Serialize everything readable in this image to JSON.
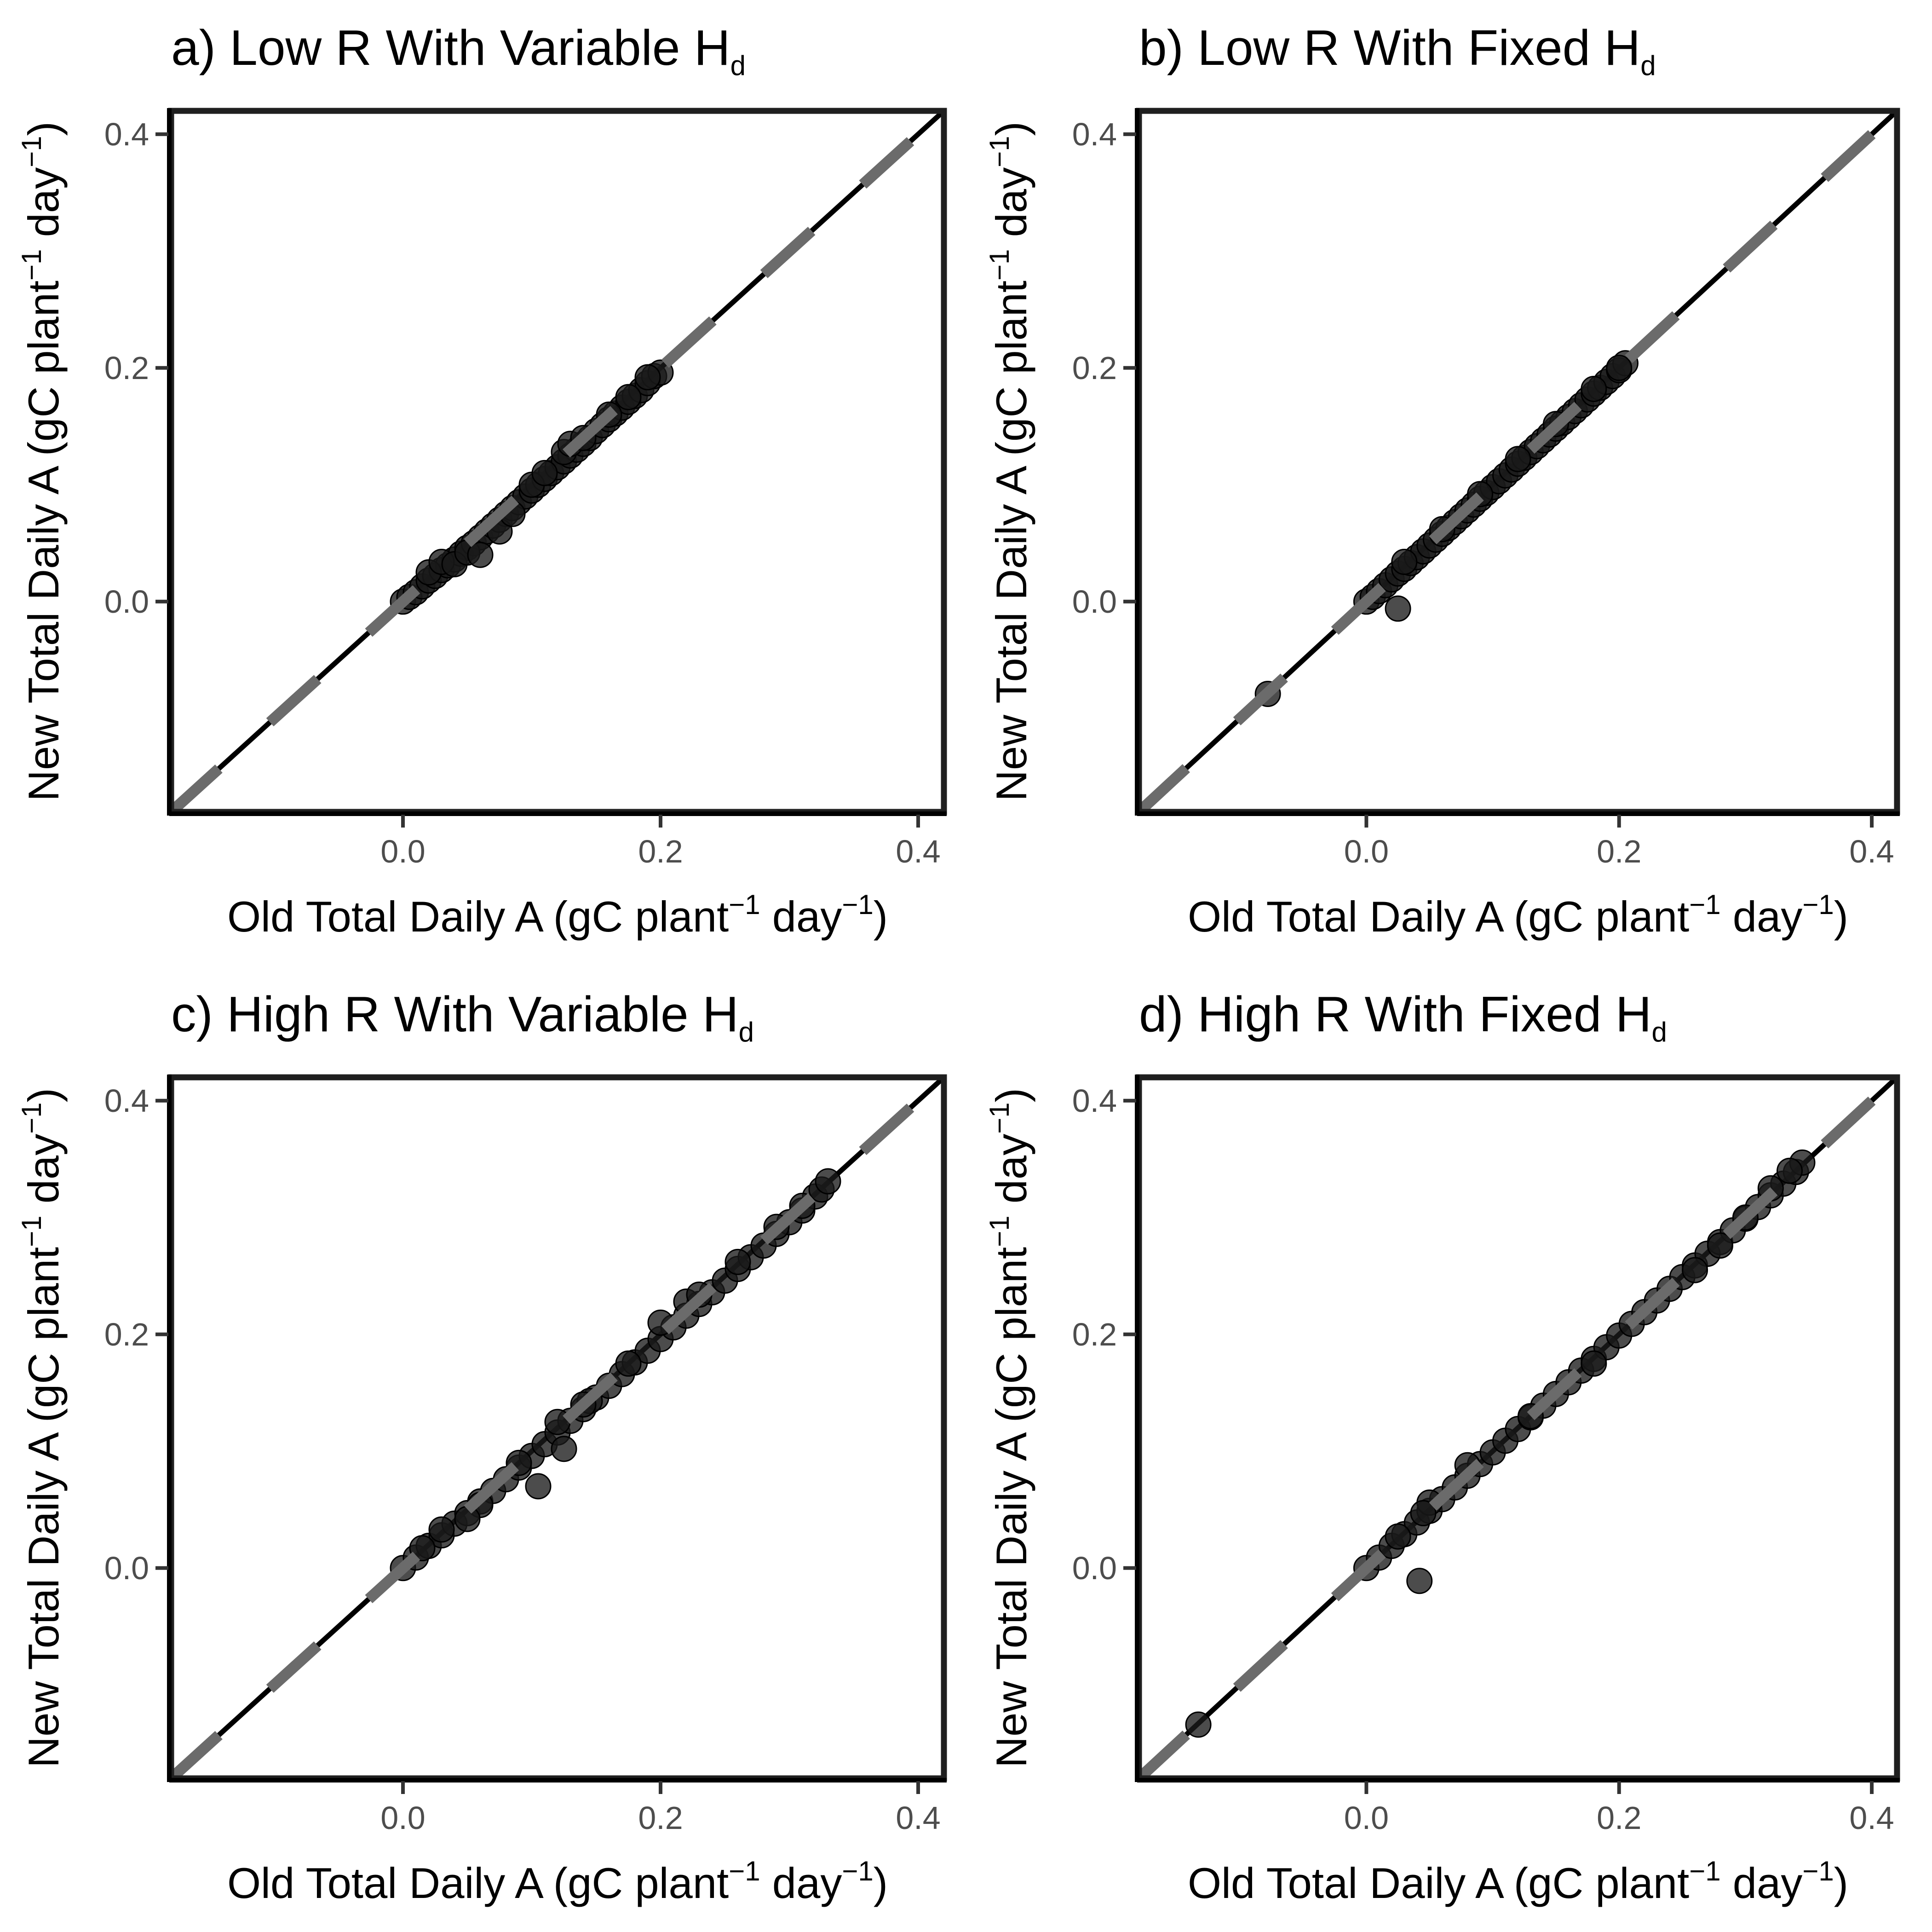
{
  "chart_data": [
    {
      "type": "scatter",
      "panel_label": "a)",
      "title": "Low R With Variable H",
      "title_subscript": "d",
      "xlabel": "Old Total Daily A (gC plant",
      "ylabel": "New Total Daily A (gC plant",
      "axis_unit_exponent": "−1",
      "axis_unit_mid": " day",
      "axis_unit_close": ")",
      "xlim": [
        -0.18,
        0.42
      ],
      "ylim": [
        -0.18,
        0.42
      ],
      "x_ticks": [
        "0.0",
        "0.2",
        "0.4"
      ],
      "y_ticks": [
        "0.0",
        "0.2",
        "0.4"
      ],
      "x_tick_values": [
        0.0,
        0.2,
        0.4
      ],
      "y_tick_values": [
        0.0,
        0.2,
        0.4
      ],
      "grid": false,
      "reference_lines": [
        "1:1 solid black",
        "fit dashed grey"
      ],
      "point_color": "#1a1a1a",
      "points": [
        [
          0.0,
          0.0
        ],
        [
          0.005,
          0.004
        ],
        [
          0.01,
          0.008
        ],
        [
          0.015,
          0.013
        ],
        [
          0.02,
          0.018
        ],
        [
          0.025,
          0.022
        ],
        [
          0.03,
          0.027
        ],
        [
          0.035,
          0.031
        ],
        [
          0.04,
          0.036
        ],
        [
          0.045,
          0.041
        ],
        [
          0.05,
          0.046
        ],
        [
          0.055,
          0.05
        ],
        [
          0.06,
          0.055
        ],
        [
          0.065,
          0.06
        ],
        [
          0.07,
          0.065
        ],
        [
          0.075,
          0.07
        ],
        [
          0.08,
          0.075
        ],
        [
          0.085,
          0.08
        ],
        [
          0.09,
          0.085
        ],
        [
          0.095,
          0.09
        ],
        [
          0.1,
          0.095
        ],
        [
          0.105,
          0.1
        ],
        [
          0.11,
          0.105
        ],
        [
          0.115,
          0.11
        ],
        [
          0.12,
          0.115
        ],
        [
          0.125,
          0.12
        ],
        [
          0.13,
          0.125
        ],
        [
          0.135,
          0.13
        ],
        [
          0.14,
          0.135
        ],
        [
          0.145,
          0.14
        ],
        [
          0.15,
          0.146
        ],
        [
          0.155,
          0.151
        ],
        [
          0.16,
          0.156
        ],
        [
          0.165,
          0.161
        ],
        [
          0.17,
          0.166
        ],
        [
          0.175,
          0.171
        ],
        [
          0.18,
          0.176
        ],
        [
          0.185,
          0.181
        ],
        [
          0.19,
          0.187
        ],
        [
          0.195,
          0.193
        ],
        [
          0.2,
          0.196
        ],
        [
          0.02,
          0.025
        ],
        [
          0.03,
          0.034
        ],
        [
          0.04,
          0.032
        ],
        [
          0.05,
          0.042
        ],
        [
          0.06,
          0.04
        ],
        [
          0.075,
          0.06
        ],
        [
          0.085,
          0.075
        ],
        [
          0.1,
          0.1
        ],
        [
          0.11,
          0.11
        ],
        [
          0.125,
          0.128
        ],
        [
          0.13,
          0.135
        ],
        [
          0.14,
          0.14
        ],
        [
          0.16,
          0.16
        ],
        [
          0.175,
          0.175
        ],
        [
          0.19,
          0.192
        ]
      ]
    },
    {
      "type": "scatter",
      "panel_label": "b)",
      "title": "Low R With Fixed H",
      "title_subscript": "d",
      "xlabel": "Old Total Daily A (gC plant",
      "ylabel": "New Total Daily A (gC plant",
      "axis_unit_exponent": "−1",
      "axis_unit_mid": " day",
      "axis_unit_close": ")",
      "xlim": [
        -0.18,
        0.42
      ],
      "ylim": [
        -0.18,
        0.42
      ],
      "x_ticks": [
        "0.0",
        "0.2",
        "0.4"
      ],
      "y_ticks": [
        "0.0",
        "0.2",
        "0.4"
      ],
      "x_tick_values": [
        0.0,
        0.2,
        0.4
      ],
      "y_tick_values": [
        0.0,
        0.2,
        0.4
      ],
      "grid": false,
      "reference_lines": [
        "1:1 solid black",
        "fit dashed grey"
      ],
      "point_color": "#1a1a1a",
      "points": [
        [
          -0.078,
          -0.079
        ],
        [
          0.025,
          -0.006
        ],
        [
          0.0,
          0.0
        ],
        [
          0.005,
          0.004
        ],
        [
          0.01,
          0.009
        ],
        [
          0.015,
          0.014
        ],
        [
          0.02,
          0.019
        ],
        [
          0.025,
          0.024
        ],
        [
          0.03,
          0.028
        ],
        [
          0.035,
          0.033
        ],
        [
          0.04,
          0.038
        ],
        [
          0.045,
          0.043
        ],
        [
          0.05,
          0.048
        ],
        [
          0.055,
          0.053
        ],
        [
          0.06,
          0.058
        ],
        [
          0.065,
          0.063
        ],
        [
          0.07,
          0.068
        ],
        [
          0.075,
          0.073
        ],
        [
          0.08,
          0.078
        ],
        [
          0.085,
          0.083
        ],
        [
          0.09,
          0.088
        ],
        [
          0.095,
          0.093
        ],
        [
          0.1,
          0.098
        ],
        [
          0.105,
          0.103
        ],
        [
          0.11,
          0.108
        ],
        [
          0.115,
          0.113
        ],
        [
          0.12,
          0.118
        ],
        [
          0.125,
          0.123
        ],
        [
          0.13,
          0.128
        ],
        [
          0.135,
          0.133
        ],
        [
          0.14,
          0.138
        ],
        [
          0.145,
          0.143
        ],
        [
          0.15,
          0.148
        ],
        [
          0.155,
          0.153
        ],
        [
          0.16,
          0.158
        ],
        [
          0.165,
          0.163
        ],
        [
          0.17,
          0.168
        ],
        [
          0.175,
          0.173
        ],
        [
          0.18,
          0.178
        ],
        [
          0.185,
          0.183
        ],
        [
          0.19,
          0.188
        ],
        [
          0.195,
          0.193
        ],
        [
          0.2,
          0.198
        ],
        [
          0.205,
          0.204
        ],
        [
          0.03,
          0.034
        ],
        [
          0.06,
          0.062
        ],
        [
          0.09,
          0.092
        ],
        [
          0.12,
          0.122
        ],
        [
          0.15,
          0.152
        ],
        [
          0.18,
          0.182
        ],
        [
          0.2,
          0.2
        ]
      ]
    },
    {
      "type": "scatter",
      "panel_label": "c)",
      "title": "High R With Variable H",
      "title_subscript": "d",
      "xlabel": "Old Total Daily A (gC plant",
      "ylabel": "New Total Daily A (gC plant",
      "axis_unit_exponent": "−1",
      "axis_unit_mid": " day",
      "axis_unit_close": ")",
      "xlim": [
        -0.18,
        0.42
      ],
      "ylim": [
        -0.18,
        0.42
      ],
      "x_ticks": [
        "0.0",
        "0.2",
        "0.4"
      ],
      "y_ticks": [
        "0.0",
        "0.2",
        "0.4"
      ],
      "x_tick_values": [
        0.0,
        0.2,
        0.4
      ],
      "y_tick_values": [
        0.0,
        0.2,
        0.4
      ],
      "grid": false,
      "reference_lines": [
        "1:1 solid black",
        "fit dashed grey"
      ],
      "point_color": "#1a1a1a",
      "points": [
        [
          0.0,
          0.0
        ],
        [
          0.01,
          0.009
        ],
        [
          0.02,
          0.019
        ],
        [
          0.03,
          0.028
        ],
        [
          0.04,
          0.038
        ],
        [
          0.05,
          0.047
        ],
        [
          0.06,
          0.057
        ],
        [
          0.07,
          0.066
        ],
        [
          0.08,
          0.076
        ],
        [
          0.09,
          0.086
        ],
        [
          0.1,
          0.096
        ],
        [
          0.11,
          0.106
        ],
        [
          0.12,
          0.116
        ],
        [
          0.13,
          0.126
        ],
        [
          0.14,
          0.136
        ],
        [
          0.15,
          0.146
        ],
        [
          0.16,
          0.156
        ],
        [
          0.17,
          0.166
        ],
        [
          0.18,
          0.176
        ],
        [
          0.19,
          0.186
        ],
        [
          0.2,
          0.196
        ],
        [
          0.21,
          0.206
        ],
        [
          0.22,
          0.216
        ],
        [
          0.23,
          0.226
        ],
        [
          0.24,
          0.236
        ],
        [
          0.25,
          0.246
        ],
        [
          0.26,
          0.256
        ],
        [
          0.27,
          0.266
        ],
        [
          0.28,
          0.276
        ],
        [
          0.29,
          0.286
        ],
        [
          0.3,
          0.296
        ],
        [
          0.31,
          0.306
        ],
        [
          0.32,
          0.318
        ],
        [
          0.325,
          0.324
        ],
        [
          0.33,
          0.331
        ],
        [
          0.105,
          0.07
        ],
        [
          0.125,
          0.102
        ],
        [
          0.145,
          0.143
        ],
        [
          0.06,
          0.054
        ],
        [
          0.05,
          0.042
        ],
        [
          0.175,
          0.175
        ],
        [
          0.2,
          0.21
        ],
        [
          0.22,
          0.228
        ],
        [
          0.23,
          0.234
        ],
        [
          0.09,
          0.09
        ],
        [
          0.12,
          0.125
        ],
        [
          0.14,
          0.14
        ],
        [
          0.26,
          0.262
        ],
        [
          0.29,
          0.292
        ],
        [
          0.31,
          0.31
        ],
        [
          0.03,
          0.033
        ],
        [
          0.015,
          0.017
        ]
      ]
    },
    {
      "type": "scatter",
      "panel_label": "d)",
      "title": "High R With Fixed H",
      "title_subscript": "d",
      "xlabel": "Old Total Daily A (gC plant",
      "ylabel": "New Total Daily A (gC plant",
      "axis_unit_exponent": "−1",
      "axis_unit_mid": " day",
      "axis_unit_close": ")",
      "xlim": [
        -0.18,
        0.42
      ],
      "ylim": [
        -0.18,
        0.42
      ],
      "x_ticks": [
        "0.0",
        "0.2",
        "0.4"
      ],
      "y_ticks": [
        "0.0",
        "0.2",
        "0.4"
      ],
      "x_tick_values": [
        0.0,
        0.2,
        0.4
      ],
      "y_tick_values": [
        0.0,
        0.2,
        0.4
      ],
      "grid": false,
      "reference_lines": [
        "1:1 solid black",
        "fit dashed grey"
      ],
      "point_color": "#1a1a1a",
      "points": [
        [
          -0.133,
          -0.134
        ],
        [
          0.042,
          -0.011
        ],
        [
          0.0,
          0.0
        ],
        [
          0.01,
          0.009
        ],
        [
          0.02,
          0.019
        ],
        [
          0.03,
          0.029
        ],
        [
          0.04,
          0.039
        ],
        [
          0.05,
          0.049
        ],
        [
          0.06,
          0.059
        ],
        [
          0.07,
          0.069
        ],
        [
          0.08,
          0.079
        ],
        [
          0.09,
          0.089
        ],
        [
          0.1,
          0.099
        ],
        [
          0.11,
          0.109
        ],
        [
          0.12,
          0.119
        ],
        [
          0.13,
          0.129
        ],
        [
          0.14,
          0.139
        ],
        [
          0.15,
          0.149
        ],
        [
          0.16,
          0.159
        ],
        [
          0.17,
          0.169
        ],
        [
          0.18,
          0.179
        ],
        [
          0.19,
          0.189
        ],
        [
          0.2,
          0.199
        ],
        [
          0.21,
          0.209
        ],
        [
          0.22,
          0.219
        ],
        [
          0.23,
          0.229
        ],
        [
          0.24,
          0.239
        ],
        [
          0.25,
          0.249
        ],
        [
          0.26,
          0.259
        ],
        [
          0.27,
          0.269
        ],
        [
          0.28,
          0.279
        ],
        [
          0.29,
          0.289
        ],
        [
          0.3,
          0.299
        ],
        [
          0.31,
          0.309
        ],
        [
          0.32,
          0.319
        ],
        [
          0.33,
          0.329
        ],
        [
          0.34,
          0.339
        ],
        [
          0.345,
          0.347
        ],
        [
          0.05,
          0.056
        ],
        [
          0.08,
          0.088
        ],
        [
          0.13,
          0.13
        ],
        [
          0.18,
          0.175
        ],
        [
          0.26,
          0.255
        ],
        [
          0.28,
          0.276
        ],
        [
          0.3,
          0.3
        ],
        [
          0.32,
          0.325
        ],
        [
          0.335,
          0.34
        ],
        [
          0.025,
          0.027
        ],
        [
          0.045,
          0.047
        ]
      ]
    }
  ]
}
